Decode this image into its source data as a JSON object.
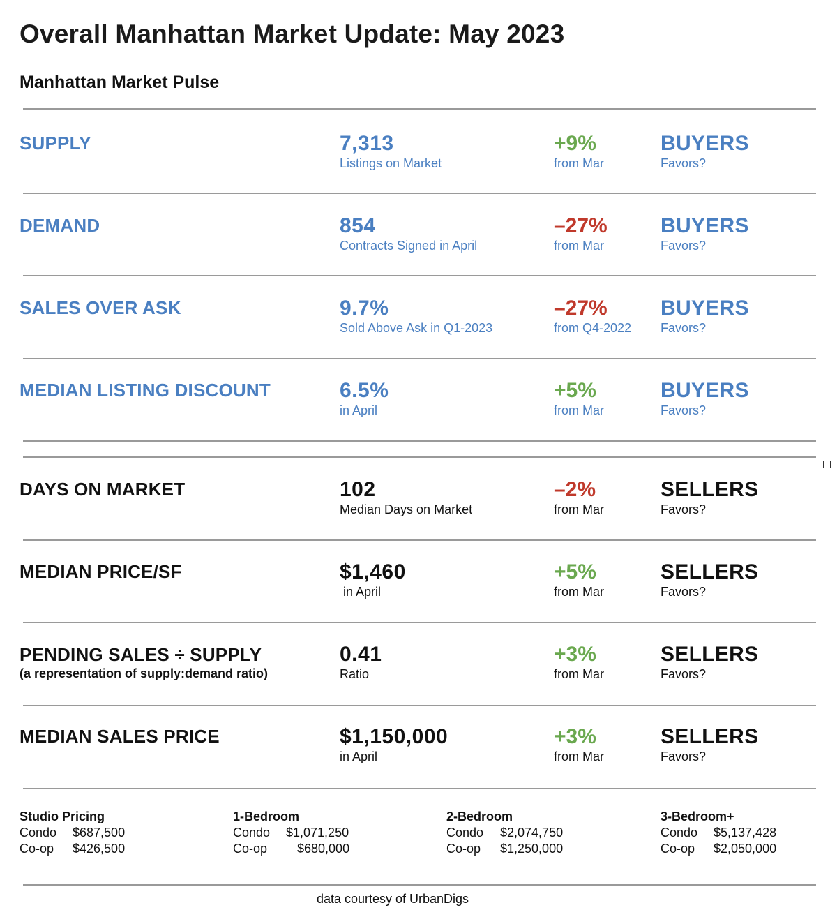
{
  "title": "Overall Manhattan Market Update: May 2023",
  "subtitle": "Manhattan Market Pulse",
  "colors": {
    "blue": "#4a7fc1",
    "green": "#6aa84f",
    "red": "#c0392b",
    "dark": "#111111"
  },
  "metrics": [
    {
      "label": "SUPPLY",
      "value": "7,313",
      "value_sub": "Listings on Market",
      "change": "+9%",
      "change_sub": "from Mar",
      "favors": "BUYERS",
      "favors_sub": "Favors?"
    },
    {
      "label": "DEMAND",
      "value": "854",
      "value_sub": "Contracts Signed in April",
      "change": "–27%",
      "change_sub": "from Mar",
      "favors": "BUYERS",
      "favors_sub": "Favors?"
    },
    {
      "label": "SALES OVER ASK",
      "value": "9.7%",
      "value_sub": "Sold Above Ask in Q1-2023",
      "change": "–27%",
      "change_sub": "from Q4-2022",
      "favors": "BUYERS",
      "favors_sub": "Favors?"
    },
    {
      "label": "MEDIAN LISTING DISCOUNT",
      "value": "6.5%",
      "value_sub": "in April",
      "change": "+5%",
      "change_sub": "from Mar",
      "favors": "BUYERS",
      "favors_sub": "Favors?"
    },
    {
      "label": "DAYS ON MARKET",
      "value": "102",
      "value_sub": "Median Days on Market",
      "change": "–2%",
      "change_sub": "from Mar",
      "favors": "SELLERS",
      "favors_sub": "Favors?"
    },
    {
      "label": "MEDIAN PRICE/SF",
      "value": "$1,460",
      "value_sub": " in April",
      "change": "+5%",
      "change_sub": "from Mar",
      "favors": "SELLERS",
      "favors_sub": "Favors?"
    },
    {
      "label": "PENDING SALES ÷ SUPPLY",
      "label_sub": "(a representation of supply:demand ratio)",
      "value": "0.41",
      "value_sub": "Ratio",
      "change": "+3%",
      "change_sub": "from Mar",
      "favors": "SELLERS",
      "favors_sub": "Favors?"
    },
    {
      "label": "MEDIAN SALES PRICE",
      "value": "$1,150,000",
      "value_sub": "in April",
      "change": "+3%",
      "change_sub": "from Mar",
      "favors": "SELLERS",
      "favors_sub": "Favors?"
    }
  ],
  "pricing": [
    {
      "heading": "Studio Pricing",
      "rows": [
        {
          "type": "Condo",
          "price": "$687,500"
        },
        {
          "type": "Co-op",
          "price": "$426,500"
        }
      ]
    },
    {
      "heading": "1-Bedroom",
      "rows": [
        {
          "type": "Condo",
          "price": "$1,071,250"
        },
        {
          "type": "Co-op",
          "price": "$680,000"
        }
      ]
    },
    {
      "heading": "2-Bedroom",
      "rows": [
        {
          "type": "Condo",
          "price": "$2,074,750"
        },
        {
          "type": "Co-op",
          "price": "$1,250,000"
        }
      ]
    },
    {
      "heading": "3-Bedroom+",
      "rows": [
        {
          "type": "Condo",
          "price": "$5,137,428"
        },
        {
          "type": "Co-op",
          "price": "$2,050,000"
        }
      ]
    }
  ],
  "footer": "data courtesy of UrbanDigs"
}
